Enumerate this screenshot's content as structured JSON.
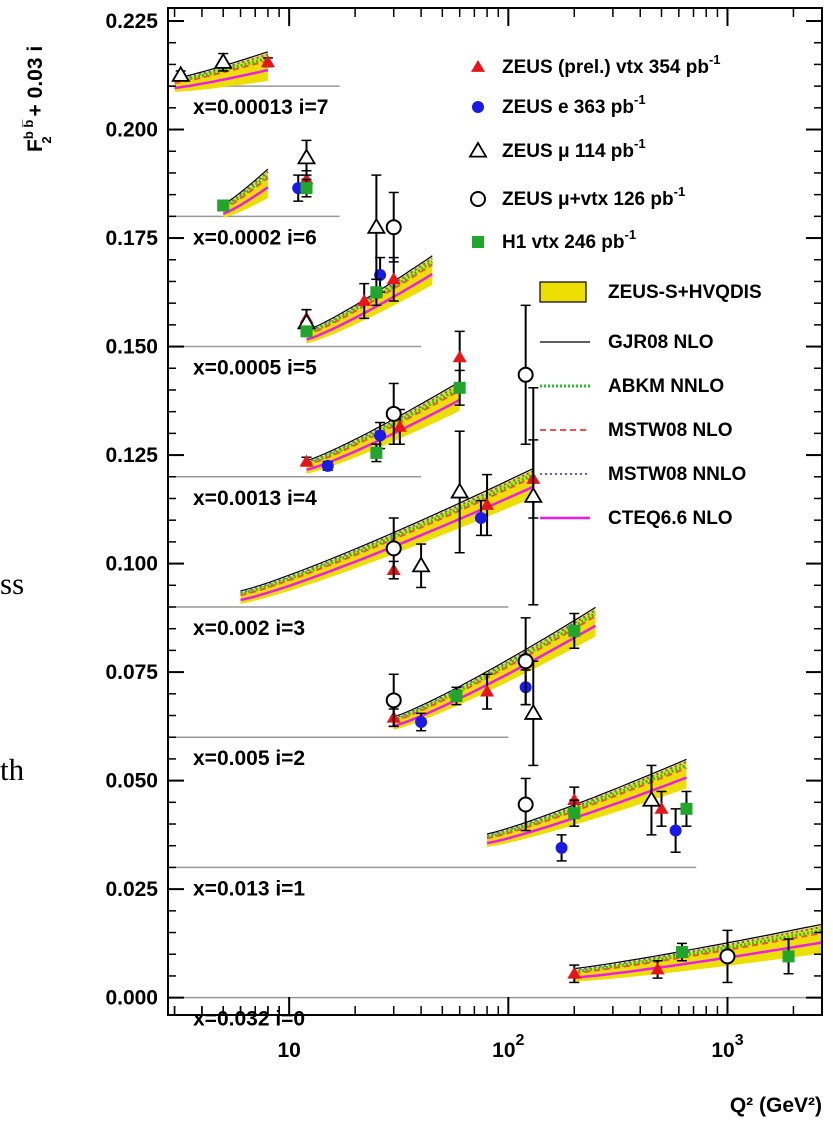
{
  "colors": {
    "zeus_prel_vtx": "#e8141b",
    "zeus_e": "#1a1ae6",
    "h1_vtx": "#22a52c",
    "band": "#ecde00",
    "gjr08": "#000000",
    "abkm": "#22c42a",
    "mstw08_nlo": "#f05252",
    "mstw08_nnlo": "#5b5bdc",
    "cteq": "#ee1bee"
  },
  "background_text": [
    "ss",
    "th"
  ],
  "chart_data": {
    "type": "scatter",
    "ylabel_main": "F",
    "ylabel_sup": "b b̅",
    "ylabel_sub": "2",
    "ylabel_tail": "+ 0.03 i",
    "xlabel": "Q² (GeV²)",
    "x_scale": "log",
    "xlim": [
      2.8,
      2700
    ],
    "ylim": [
      -0.004,
      0.228
    ],
    "y_ticks": [
      "0.000",
      "0.025",
      "0.050",
      "0.075",
      "0.100",
      "0.125",
      "0.150",
      "0.175",
      "0.200",
      "0.225"
    ],
    "x_tick_labels": [
      {
        "value": 10,
        "base": "10",
        "exp": ""
      },
      {
        "value": 100,
        "base": "10",
        "exp": "2"
      },
      {
        "value": 1000,
        "base": "10",
        "exp": "3"
      }
    ],
    "bins": [
      {
        "label": "x=0.032 i=0",
        "i": 0
      },
      {
        "label": "x=0.013 i=1",
        "i": 1
      },
      {
        "label": "x=0.005 i=2",
        "i": 2
      },
      {
        "label": "x=0.002 i=3",
        "i": 3
      },
      {
        "label": "x=0.0013 i=4",
        "i": 4
      },
      {
        "label": "x=0.0005 i=5",
        "i": 5
      },
      {
        "label": "x=0.0002 i=6",
        "i": 6
      },
      {
        "label": "x=0.00013 i=7",
        "i": 7
      }
    ],
    "legend": [
      {
        "key": "zeus_prel_vtx",
        "text": "ZEUS (prel.) vtx 354 pb",
        "sup": "-1"
      },
      {
        "key": "zeus_e",
        "text": "ZEUS e 363 pb",
        "sup": "-1"
      },
      {
        "key": "zeus_mu",
        "text": "ZEUS μ 114 pb",
        "sup": "-1"
      },
      {
        "key": "zeus_muvtx",
        "text": "ZEUS μ+vtx 126 pb",
        "sup": "-1"
      },
      {
        "key": "h1_vtx",
        "text": "H1 vtx 246 pb",
        "sup": "-1"
      },
      {
        "key": "band",
        "text": "ZEUS-S+HVQDIS",
        "sup": ""
      },
      {
        "key": "gjr08",
        "text": "GJR08 NLO",
        "sup": ""
      },
      {
        "key": "abkm",
        "text": "ABKM NNLO",
        "sup": ""
      },
      {
        "key": "mstw08_nlo",
        "text": "MSTW08 NLO",
        "sup": ""
      },
      {
        "key": "mstw08_nnlo",
        "text": "MSTW08 NNLO",
        "sup": ""
      },
      {
        "key": "cteq",
        "text": "CTEQ6.6 NLO",
        "sup": ""
      }
    ],
    "theory_curves": [
      {
        "i": 7,
        "q2": [
          3,
          8
        ],
        "y": [
          0.2105,
          0.2155
        ]
      },
      {
        "i": 6,
        "q2": [
          5,
          8
        ],
        "y": [
          0.1815,
          0.1885
        ]
      },
      {
        "i": 6,
        "q2": [
          12,
          45
        ],
        "y": [
          0.1525,
          0.1685
        ]
      },
      {
        "i": 5,
        "q2": [
          12,
          60
        ],
        "y": [
          0.1225,
          0.1395
        ]
      },
      {
        "i": 4,
        "q2": [
          6,
          130
        ],
        "y": [
          0.0925,
          0.1195
        ]
      },
      {
        "i": 3,
        "q2": [
          30,
          250
        ],
        "y": [
          0.0635,
          0.0875
        ]
      },
      {
        "i": 2,
        "q2": [
          80,
          650
        ],
        "y": [
          0.0365,
          0.0525
        ]
      },
      {
        "i": 1,
        "q2": [
          200,
          2700
        ],
        "y": [
          0.0055,
          0.0145
        ]
      }
    ],
    "series": [
      {
        "name": "ZEUS (prel.) vtx 354 pb⁻¹",
        "marker": "triangle-filled",
        "points": [
          {
            "x": 8,
            "y": 0.2155,
            "err": 0.001
          },
          {
            "x": 12,
            "y": 0.1885,
            "err": 0.002
          },
          {
            "x": 22,
            "y": 0.1605,
            "err": 0.004
          },
          {
            "x": 30,
            "y": 0.1655,
            "err": 0.005
          },
          {
            "x": 12,
            "y": 0.1565,
            "err": 0.002
          },
          {
            "x": 32,
            "y": 0.1315,
            "err": 0.004
          },
          {
            "x": 60,
            "y": 0.1475,
            "err": 0.006
          },
          {
            "x": 12,
            "y": 0.1235,
            "err": 0.001
          },
          {
            "x": 80,
            "y": 0.1135,
            "err": 0.007
          },
          {
            "x": 130,
            "y": 0.1195,
            "err": 0.009
          },
          {
            "x": 30,
            "y": 0.0985,
            "err": 0.002
          },
          {
            "x": 30,
            "y": 0.0645,
            "err": 0.002
          },
          {
            "x": 80,
            "y": 0.0705,
            "err": 0.004
          },
          {
            "x": 200,
            "y": 0.0455,
            "err": 0.003
          },
          {
            "x": 200,
            "y": 0.0055,
            "err": 0.002
          },
          {
            "x": 480,
            "y": 0.0065,
            "err": 0.002
          },
          {
            "x": 500,
            "y": 0.0435,
            "err": 0.004
          }
        ]
      },
      {
        "name": "ZEUS e 363 pb⁻¹",
        "marker": "circle-filled",
        "points": [
          {
            "x": 11,
            "y": 0.1865,
            "err": 0.003
          },
          {
            "x": 26,
            "y": 0.1665,
            "err": 0.004
          },
          {
            "x": 15,
            "y": 0.1225,
            "err": 0.001
          },
          {
            "x": 26,
            "y": 0.1295,
            "err": 0.003
          },
          {
            "x": 75,
            "y": 0.1105,
            "err": 0.004
          },
          {
            "x": 40,
            "y": 0.0635,
            "err": 0.002
          },
          {
            "x": 120,
            "y": 0.0715,
            "err": 0.004
          },
          {
            "x": 175,
            "y": 0.0345,
            "err": 0.003
          },
          {
            "x": 580,
            "y": 0.0385,
            "err": 0.005
          }
        ]
      },
      {
        "name": "ZEUS μ 114 pb⁻¹",
        "marker": "triangle-open",
        "points": [
          {
            "x": 3.2,
            "y": 0.2125,
            "err": 0.001
          },
          {
            "x": 5,
            "y": 0.2155,
            "err": 0.002
          },
          {
            "x": 12,
            "y": 0.1935,
            "err": 0.004
          },
          {
            "x": 25,
            "y": 0.1775,
            "err": 0.012
          },
          {
            "x": 12,
            "y": 0.1555,
            "err": 0.003
          },
          {
            "x": 60,
            "y": 0.1165,
            "err": 0.014
          },
          {
            "x": 40,
            "y": 0.0995,
            "err": 0.005
          },
          {
            "x": 130,
            "y": 0.1155,
            "err": 0.025
          },
          {
            "x": 130,
            "y": 0.0655,
            "err": 0.012
          },
          {
            "x": 450,
            "y": 0.0455,
            "err": 0.008
          }
        ]
      },
      {
        "name": "ZEUS μ+vtx 126 pb⁻¹",
        "marker": "circle-open",
        "points": [
          {
            "x": 30,
            "y": 0.1775,
            "err": 0.008
          },
          {
            "x": 30,
            "y": 0.1345,
            "err": 0.007
          },
          {
            "x": 120,
            "y": 0.1435,
            "err": 0.016
          },
          {
            "x": 30,
            "y": 0.1035,
            "err": 0.007
          },
          {
            "x": 30,
            "y": 0.0685,
            "err": 0.006
          },
          {
            "x": 120,
            "y": 0.0775,
            "err": 0.01
          },
          {
            "x": 120,
            "y": 0.0445,
            "err": 0.006
          },
          {
            "x": 1000,
            "y": 0.0095,
            "err": 0.006
          }
        ]
      },
      {
        "name": "H1 vtx 246 pb⁻¹",
        "marker": "square-filled",
        "points": [
          {
            "x": 5,
            "y": 0.1825,
            "err": 0.001
          },
          {
            "x": 12,
            "y": 0.1865,
            "err": 0.002
          },
          {
            "x": 25,
            "y": 0.1625,
            "err": 0.003
          },
          {
            "x": 12,
            "y": 0.1535,
            "err": 0.001
          },
          {
            "x": 60,
            "y": 0.1405,
            "err": 0.004
          },
          {
            "x": 25,
            "y": 0.1255,
            "err": 0.002
          },
          {
            "x": 58,
            "y": 0.0695,
            "err": 0.002
          },
          {
            "x": 200,
            "y": 0.0845,
            "err": 0.004
          },
          {
            "x": 200,
            "y": 0.0425,
            "err": 0.003
          },
          {
            "x": 650,
            "y": 0.0435,
            "err": 0.004
          },
          {
            "x": 620,
            "y": 0.0105,
            "err": 0.002
          },
          {
            "x": 1900,
            "y": 0.0095,
            "err": 0.004
          }
        ]
      }
    ]
  }
}
